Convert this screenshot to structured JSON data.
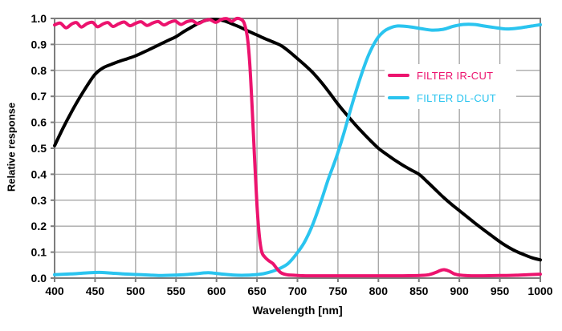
{
  "chart_data": {
    "type": "line",
    "title": "",
    "xlabel": "Wavelength [nm]",
    "ylabel": "Relative response",
    "xlim": [
      400,
      1000
    ],
    "ylim": [
      0.0,
      1.0
    ],
    "xticks": [
      400,
      450,
      500,
      550,
      600,
      650,
      700,
      750,
      800,
      850,
      900,
      950,
      1000
    ],
    "ytick_values": [
      0.0,
      0.1,
      0.2,
      0.3,
      0.4,
      0.5,
      0.6,
      0.7,
      0.8,
      0.9,
      1.0
    ],
    "ytick_labels": [
      "0.0",
      "0.1",
      "0.2",
      "0.3",
      "0.4",
      "0.5",
      "0.6",
      "0.7",
      "0.8",
      "0.9",
      "1.0"
    ],
    "grid": true,
    "legend_position": "inside-right",
    "legend": {
      "items": [
        {
          "label": "FILTER IR-CUT",
          "color": "#ec136e"
        },
        {
          "label": "FILTER DL-CUT",
          "color": "#2ac4ef"
        }
      ]
    },
    "series": [
      {
        "id": "sensor-response-black",
        "color": "#000000",
        "width": 4,
        "points": [
          [
            400,
            0.51
          ],
          [
            410,
            0.575
          ],
          [
            420,
            0.635
          ],
          [
            430,
            0.69
          ],
          [
            440,
            0.74
          ],
          [
            450,
            0.785
          ],
          [
            460,
            0.81
          ],
          [
            470,
            0.823
          ],
          [
            480,
            0.835
          ],
          [
            490,
            0.845
          ],
          [
            500,
            0.856
          ],
          [
            510,
            0.87
          ],
          [
            520,
            0.885
          ],
          [
            530,
            0.9
          ],
          [
            540,
            0.915
          ],
          [
            550,
            0.93
          ],
          [
            560,
            0.95
          ],
          [
            570,
            0.968
          ],
          [
            580,
            0.985
          ],
          [
            590,
            0.995
          ],
          [
            600,
            0.996
          ],
          [
            610,
            0.99
          ],
          [
            620,
            0.978
          ],
          [
            630,
            0.965
          ],
          [
            640,
            0.95
          ],
          [
            650,
            0.936
          ],
          [
            660,
            0.922
          ],
          [
            670,
            0.909
          ],
          [
            680,
            0.895
          ],
          [
            690,
            0.872
          ],
          [
            700,
            0.845
          ],
          [
            710,
            0.818
          ],
          [
            720,
            0.788
          ],
          [
            730,
            0.752
          ],
          [
            740,
            0.712
          ],
          [
            750,
            0.67
          ],
          [
            760,
            0.632
          ],
          [
            770,
            0.596
          ],
          [
            780,
            0.562
          ],
          [
            790,
            0.53
          ],
          [
            800,
            0.5
          ],
          [
            810,
            0.477
          ],
          [
            820,
            0.455
          ],
          [
            830,
            0.435
          ],
          [
            840,
            0.417
          ],
          [
            850,
            0.4
          ],
          [
            860,
            0.372
          ],
          [
            870,
            0.342
          ],
          [
            880,
            0.312
          ],
          [
            890,
            0.285
          ],
          [
            900,
            0.26
          ],
          [
            910,
            0.235
          ],
          [
            920,
            0.21
          ],
          [
            930,
            0.186
          ],
          [
            940,
            0.163
          ],
          [
            950,
            0.14
          ],
          [
            960,
            0.12
          ],
          [
            970,
            0.103
          ],
          [
            980,
            0.09
          ],
          [
            990,
            0.078
          ],
          [
            1000,
            0.07
          ]
        ]
      },
      {
        "id": "filter-dl-cut-cyan",
        "color": "#2ac4ef",
        "width": 4,
        "points": [
          [
            400,
            0.013
          ],
          [
            420,
            0.016
          ],
          [
            440,
            0.02
          ],
          [
            455,
            0.022
          ],
          [
            470,
            0.019
          ],
          [
            485,
            0.016
          ],
          [
            500,
            0.014
          ],
          [
            515,
            0.012
          ],
          [
            530,
            0.01
          ],
          [
            545,
            0.011
          ],
          [
            560,
            0.013
          ],
          [
            575,
            0.017
          ],
          [
            590,
            0.021
          ],
          [
            605,
            0.016
          ],
          [
            620,
            0.012
          ],
          [
            635,
            0.011
          ],
          [
            648,
            0.013
          ],
          [
            658,
            0.017
          ],
          [
            668,
            0.025
          ],
          [
            678,
            0.037
          ],
          [
            688,
            0.055
          ],
          [
            698,
            0.09
          ],
          [
            708,
            0.135
          ],
          [
            718,
            0.2
          ],
          [
            728,
            0.285
          ],
          [
            738,
            0.38
          ],
          [
            748,
            0.465
          ],
          [
            758,
            0.565
          ],
          [
            768,
            0.675
          ],
          [
            778,
            0.775
          ],
          [
            788,
            0.86
          ],
          [
            798,
            0.92
          ],
          [
            806,
            0.948
          ],
          [
            814,
            0.963
          ],
          [
            824,
            0.971
          ],
          [
            838,
            0.968
          ],
          [
            852,
            0.961
          ],
          [
            866,
            0.955
          ],
          [
            880,
            0.958
          ],
          [
            893,
            0.97
          ],
          [
            905,
            0.977
          ],
          [
            918,
            0.977
          ],
          [
            930,
            0.971
          ],
          [
            943,
            0.965
          ],
          [
            956,
            0.96
          ],
          [
            968,
            0.961
          ],
          [
            980,
            0.966
          ],
          [
            990,
            0.971
          ],
          [
            1000,
            0.976
          ]
        ]
      },
      {
        "id": "filter-ir-cut-pink",
        "color": "#ec136e",
        "width": 4,
        "points": [
          [
            400,
            0.975
          ],
          [
            407,
            0.982
          ],
          [
            414,
            0.964
          ],
          [
            421,
            0.978
          ],
          [
            427,
            0.984
          ],
          [
            433,
            0.967
          ],
          [
            440,
            0.98
          ],
          [
            447,
            0.985
          ],
          [
            453,
            0.968
          ],
          [
            460,
            0.979
          ],
          [
            466,
            0.984
          ],
          [
            472,
            0.969
          ],
          [
            479,
            0.979
          ],
          [
            486,
            0.986
          ],
          [
            493,
            0.972
          ],
          [
            500,
            0.981
          ],
          [
            507,
            0.987
          ],
          [
            514,
            0.973
          ],
          [
            521,
            0.982
          ],
          [
            528,
            0.988
          ],
          [
            535,
            0.975
          ],
          [
            542,
            0.985
          ],
          [
            549,
            0.99
          ],
          [
            556,
            0.977
          ],
          [
            563,
            0.987
          ],
          [
            570,
            0.991
          ],
          [
            577,
            0.98
          ],
          [
            585,
            0.991
          ],
          [
            592,
            0.995
          ],
          [
            599,
            0.985
          ],
          [
            606,
            0.996
          ],
          [
            613,
            0.999
          ],
          [
            619,
            0.989
          ],
          [
            625,
            1.0
          ],
          [
            630,
            0.997
          ],
          [
            634,
            0.983
          ],
          [
            638,
            0.93
          ],
          [
            641,
            0.83
          ],
          [
            644,
            0.66
          ],
          [
            647,
            0.46
          ],
          [
            650,
            0.28
          ],
          [
            653,
            0.16
          ],
          [
            656,
            0.1
          ],
          [
            660,
            0.08
          ],
          [
            665,
            0.066
          ],
          [
            670,
            0.055
          ],
          [
            675,
            0.035
          ],
          [
            680,
            0.02
          ],
          [
            687,
            0.013
          ],
          [
            695,
            0.011
          ],
          [
            710,
            0.009
          ],
          [
            730,
            0.009
          ],
          [
            750,
            0.009
          ],
          [
            770,
            0.009
          ],
          [
            790,
            0.009
          ],
          [
            810,
            0.009
          ],
          [
            830,
            0.009
          ],
          [
            850,
            0.01
          ],
          [
            862,
            0.013
          ],
          [
            871,
            0.022
          ],
          [
            877,
            0.03
          ],
          [
            882,
            0.032
          ],
          [
            888,
            0.026
          ],
          [
            894,
            0.016
          ],
          [
            902,
            0.011
          ],
          [
            915,
            0.009
          ],
          [
            930,
            0.009
          ],
          [
            950,
            0.01
          ],
          [
            970,
            0.011
          ],
          [
            985,
            0.013
          ],
          [
            1000,
            0.015
          ]
        ]
      }
    ],
    "style": {
      "grid_color": "#a8a8a8",
      "border_color": "#7d7d7d",
      "background": "#ffffff",
      "tick_text_color": "#000000"
    }
  }
}
